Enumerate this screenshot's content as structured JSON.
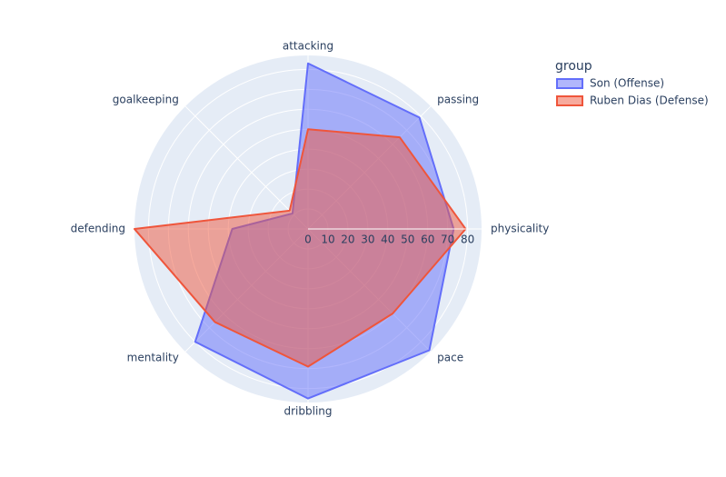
{
  "chart_data": {
    "type": "radar",
    "categories": [
      "physicality",
      "passing",
      "attacking",
      "goalkeeping",
      "defending",
      "mentality",
      "dribbling",
      "pace"
    ],
    "legend_title": "group",
    "series": [
      {
        "name": "Son (Offense)",
        "color": "#636efa",
        "values": [
          73,
          79,
          83,
          11,
          38,
          80,
          85,
          86
        ]
      },
      {
        "name": "Ruben Dias (Defense)",
        "color": "#ef553b",
        "values": [
          79,
          65,
          50,
          13,
          87,
          66,
          69,
          60
        ]
      }
    ],
    "rlim": [
      0,
      87
    ],
    "rticks": [
      0,
      10,
      20,
      30,
      40,
      50,
      60,
      70,
      80
    ],
    "grid": true
  }
}
